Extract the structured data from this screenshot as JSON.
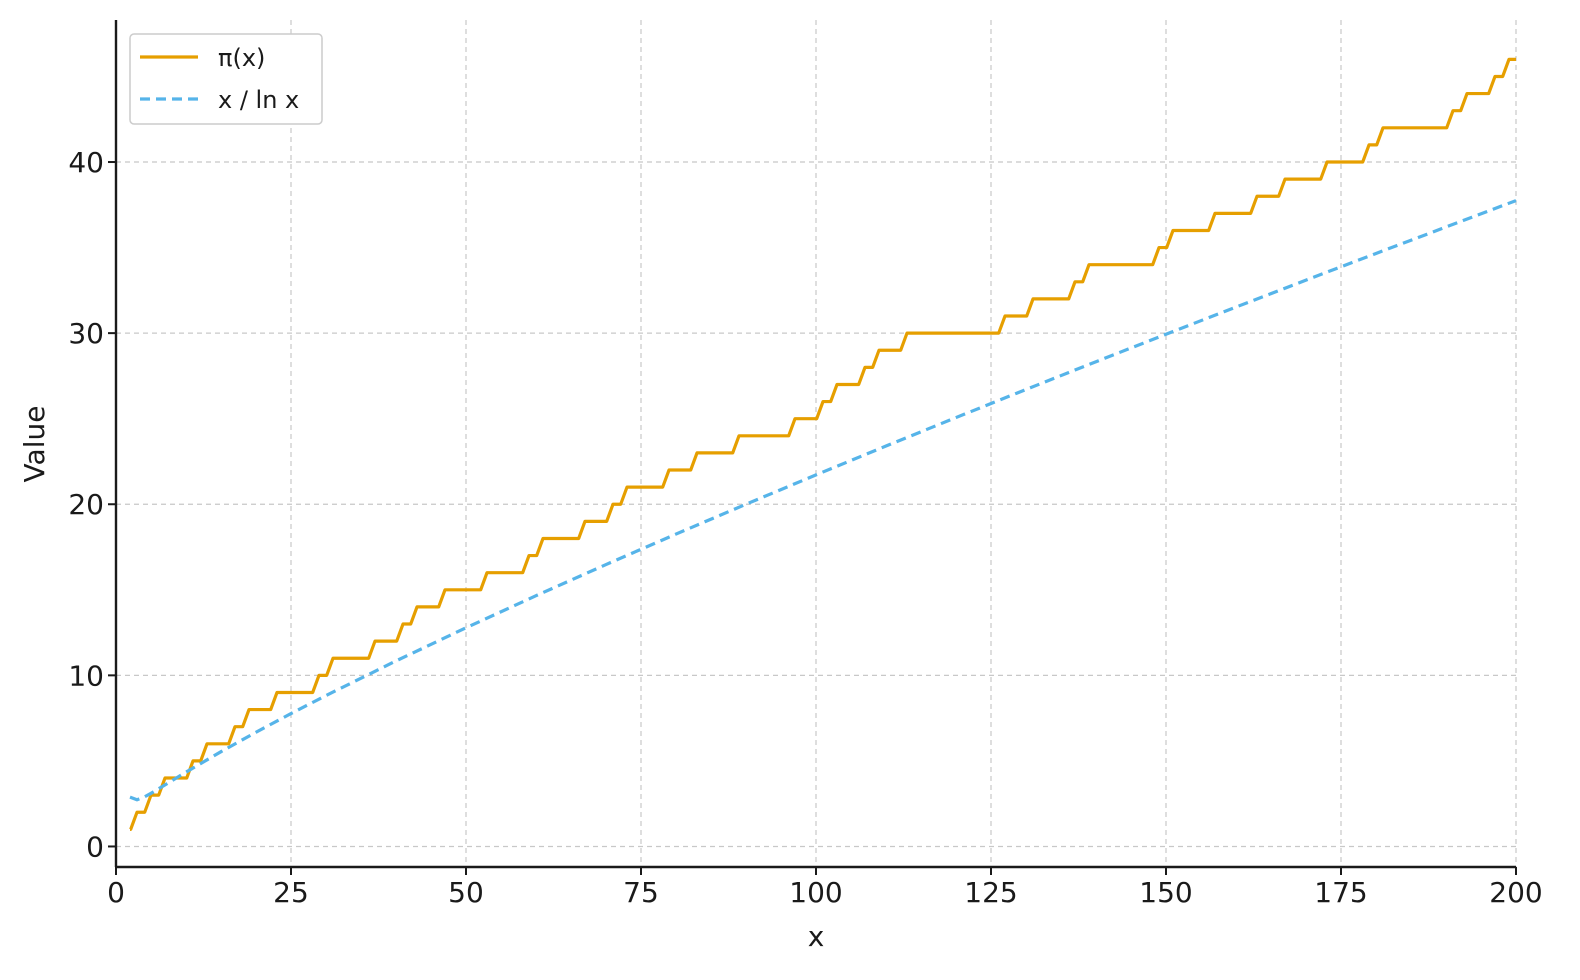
{
  "chart_data": {
    "type": "line",
    "title": "",
    "xlabel": "x",
    "ylabel": "Value",
    "xlim": [
      0,
      200
    ],
    "ylim": [
      -1.2,
      48.3
    ],
    "xticks": [
      0,
      25,
      50,
      75,
      100,
      125,
      150,
      175,
      200
    ],
    "yticks": [
      0,
      10,
      20,
      30,
      40
    ],
    "grid": true,
    "legend_position": "top-left",
    "series": [
      {
        "name": "π(x)",
        "style": "solid-step",
        "color": "#E69F00",
        "x_start": 2,
        "x_end": 200,
        "step_x": [
          2,
          3,
          5,
          7,
          11,
          13,
          17,
          19,
          23,
          29,
          31,
          37,
          41,
          43,
          47,
          53,
          59,
          61,
          67,
          71,
          73,
          79,
          83,
          89,
          97,
          101,
          103,
          107,
          109,
          113,
          127,
          131,
          137,
          139,
          149,
          151,
          157,
          163,
          167,
          173,
          179,
          181,
          191,
          193,
          197,
          199
        ],
        "step_y": [
          1,
          2,
          3,
          4,
          5,
          6,
          7,
          8,
          9,
          10,
          11,
          12,
          13,
          14,
          15,
          16,
          17,
          18,
          19,
          20,
          21,
          22,
          23,
          24,
          25,
          26,
          27,
          28,
          29,
          30,
          31,
          32,
          33,
          34,
          35,
          36,
          37,
          38,
          39,
          40,
          41,
          42,
          43,
          44,
          45,
          46
        ]
      },
      {
        "name": "x / ln x",
        "style": "dashed",
        "color": "#56B4E9",
        "x": [
          2,
          3,
          4,
          5,
          6,
          8,
          10,
          15,
          20,
          25,
          30,
          40,
          50,
          60,
          70,
          80,
          90,
          100,
          110,
          120,
          130,
          140,
          150,
          160,
          170,
          180,
          190,
          200
        ],
        "y": [
          2.885,
          2.731,
          2.885,
          3.107,
          3.349,
          3.847,
          4.343,
          5.539,
          6.676,
          7.767,
          8.82,
          10.843,
          12.781,
          14.654,
          16.476,
          18.256,
          20.001,
          21.715,
          23.402,
          25.066,
          26.708,
          28.33,
          29.936,
          31.524,
          33.098,
          34.657,
          36.202,
          37.747
        ]
      }
    ]
  }
}
